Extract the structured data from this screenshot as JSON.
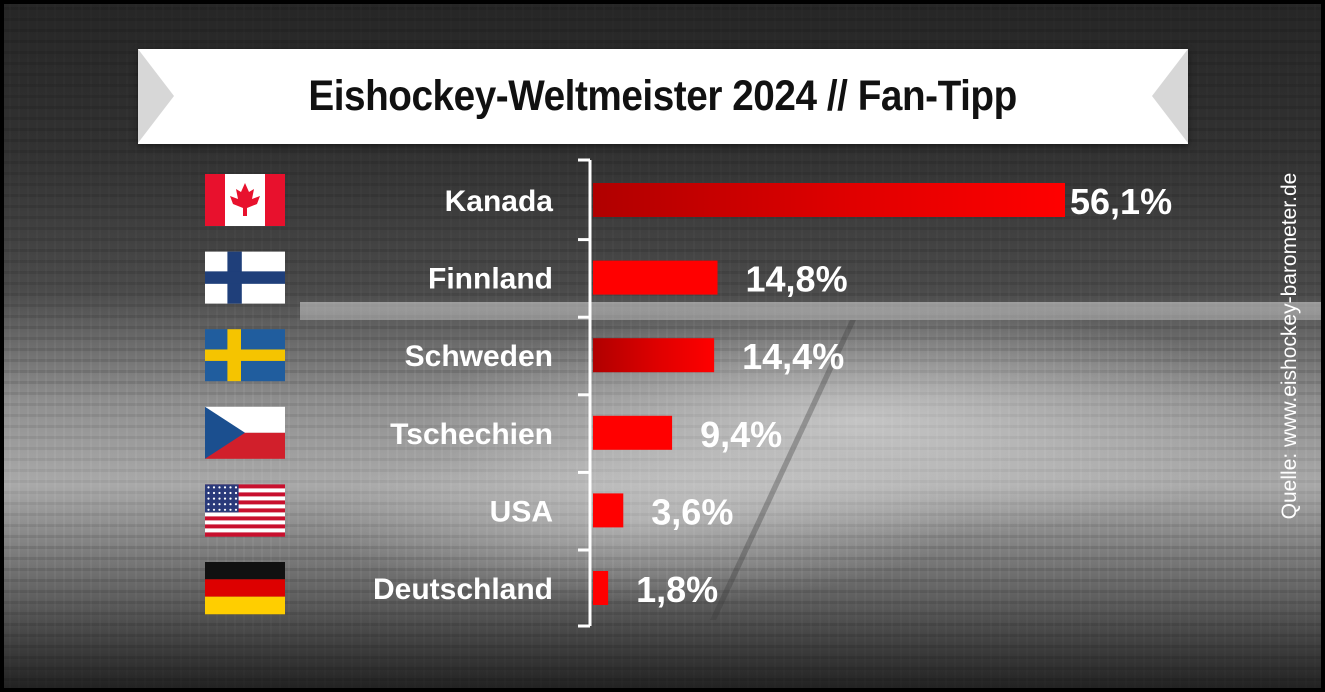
{
  "title": "Eishockey-Weltmeister 2024 // Fan-Tipp",
  "source_note": "Quelle: www.eishockey-barometer.de",
  "colors": {
    "bar_red": "#ff0000",
    "bar_dark_red": "#c00000",
    "label_white": "#ffffff",
    "title_bg": "#ffffff"
  },
  "chart_data": {
    "type": "bar",
    "orientation": "horizontal",
    "title": "Eishockey-Weltmeister 2024 // Fan-Tipp",
    "categories": [
      "Kanada",
      "Finnland",
      "Schweden",
      "Tschechien",
      "USA",
      "Deutschland"
    ],
    "values": [
      56.1,
      14.8,
      14.4,
      9.4,
      3.6,
      1.8
    ],
    "value_labels": [
      "56,1%",
      "14,8%",
      "14,4%",
      "9,4%",
      "3,6%",
      "1,8%"
    ],
    "flags": [
      "canada-flag",
      "finland-flag",
      "sweden-flag",
      "czechia-flag",
      "usa-flag",
      "germany-flag"
    ],
    "unit": "%",
    "xlim": [
      0,
      60
    ],
    "grid": false,
    "legend": "none"
  }
}
